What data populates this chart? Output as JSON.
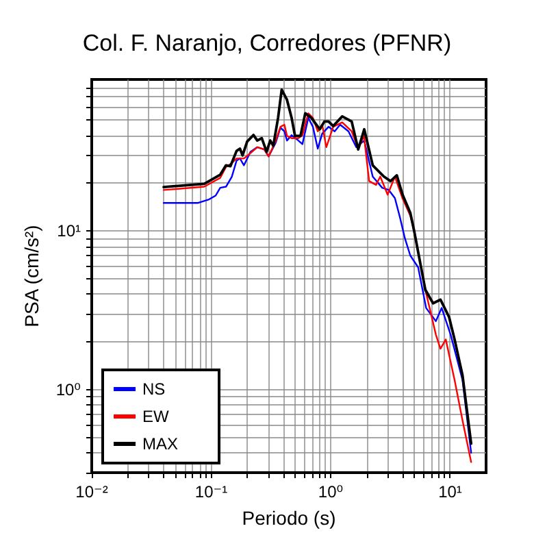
{
  "chart_data": {
    "type": "line",
    "title": "Col. F. Naranjo, Corredores (PFNR)",
    "xlabel": "Periodo (s)",
    "ylabel": "PSA (cm/s²)",
    "log": "xy",
    "grid": true,
    "legend": "bottom left",
    "marker": "none",
    "line_style": "solid",
    "xlim": [
      0.01,
      20
    ],
    "ylim": [
      0.3,
      90
    ],
    "xticks": [
      {
        "value": 0.01,
        "label": "10⁻²"
      },
      {
        "value": 0.02,
        "label": null
      },
      {
        "value": 0.03,
        "label": null
      },
      {
        "value": 0.04,
        "label": null
      },
      {
        "value": 0.05,
        "label": null
      },
      {
        "value": 0.06,
        "label": null
      },
      {
        "value": 0.07,
        "label": null
      },
      {
        "value": 0.08,
        "label": null
      },
      {
        "value": 0.09,
        "label": null
      },
      {
        "value": 0.1,
        "label": "10⁻¹"
      },
      {
        "value": 0.2,
        "label": null
      },
      {
        "value": 0.3,
        "label": null
      },
      {
        "value": 0.4,
        "label": null
      },
      {
        "value": 0.5,
        "label": null
      },
      {
        "value": 0.6,
        "label": null
      },
      {
        "value": 0.7,
        "label": null
      },
      {
        "value": 0.8,
        "label": null
      },
      {
        "value": 0.9,
        "label": null
      },
      {
        "value": 1,
        "label": "10⁰"
      },
      {
        "value": 2,
        "label": null
      },
      {
        "value": 3,
        "label": null
      },
      {
        "value": 4,
        "label": null
      },
      {
        "value": 5,
        "label": null
      },
      {
        "value": 6,
        "label": null
      },
      {
        "value": 7,
        "label": null
      },
      {
        "value": 8,
        "label": null
      },
      {
        "value": 9,
        "label": null
      },
      {
        "value": 10,
        "label": "10¹"
      }
    ],
    "yticks": [
      {
        "value": 0.3,
        "label": null
      },
      {
        "value": 0.4,
        "label": null
      },
      {
        "value": 0.5,
        "label": null
      },
      {
        "value": 0.6,
        "label": null
      },
      {
        "value": 0.7,
        "label": null
      },
      {
        "value": 0.8,
        "label": null
      },
      {
        "value": 0.9,
        "label": null
      },
      {
        "value": 1,
        "label": "10⁰"
      },
      {
        "value": 2,
        "label": null
      },
      {
        "value": 3,
        "label": null
      },
      {
        "value": 4,
        "label": null
      },
      {
        "value": 5,
        "label": null
      },
      {
        "value": 6,
        "label": null
      },
      {
        "value": 7,
        "label": null
      },
      {
        "value": 8,
        "label": null
      },
      {
        "value": 9,
        "label": null
      },
      {
        "value": 10,
        "label": "10¹"
      },
      {
        "value": 20,
        "label": null
      },
      {
        "value": 30,
        "label": null
      },
      {
        "value": 40,
        "label": null
      },
      {
        "value": 50,
        "label": null
      },
      {
        "value": 60,
        "label": null
      },
      {
        "value": 70,
        "label": null
      },
      {
        "value": 80,
        "label": null
      }
    ],
    "series": [
      {
        "name": "NS",
        "color": "#0000ff",
        "x": [
          0.04,
          0.077,
          0.096,
          0.109,
          0.119,
          0.133,
          0.149,
          0.163,
          0.174,
          0.188,
          0.213,
          0.243,
          0.278,
          0.303,
          0.347,
          0.38,
          0.41,
          0.431,
          0.471,
          0.536,
          0.58,
          0.65,
          0.71,
          0.78,
          0.85,
          0.96,
          1.08,
          1.2,
          1.41,
          1.64,
          1.91,
          2.25,
          2.7,
          3.07,
          3.45,
          3.8,
          4.18,
          4.64,
          5.4,
          6.3,
          7.6,
          8.5,
          10.1,
          12.7,
          15
        ],
        "values": [
          15,
          15,
          15.8,
          16.7,
          18.7,
          19,
          22,
          27.7,
          28.6,
          25.9,
          31.5,
          33.7,
          32.6,
          29.5,
          36,
          44.7,
          42.4,
          37.1,
          40.1,
          37.1,
          35.2,
          51.6,
          45.3,
          33,
          41,
          45.3,
          42.4,
          46.7,
          42.4,
          33.7,
          37.1,
          22,
          18.7,
          18.1,
          16.1,
          12.2,
          9,
          7,
          5.9,
          3.27,
          2.7,
          3.27,
          2.22,
          1.15,
          0.4
        ]
      },
      {
        "name": "EW",
        "color": "#ff0000",
        "x": [
          0.04,
          0.0875,
          0.119,
          0.133,
          0.149,
          0.163,
          0.174,
          0.188,
          0.213,
          0.243,
          0.278,
          0.303,
          0.347,
          0.38,
          0.41,
          0.431,
          0.471,
          0.536,
          0.58,
          0.65,
          0.71,
          0.78,
          0.85,
          0.92,
          1.05,
          1.25,
          1.5,
          1.7,
          1.9,
          2.1,
          2.4,
          2.6,
          3,
          3.45,
          4,
          4.64,
          5,
          6.2,
          7.6,
          8.3,
          9.2,
          10.9,
          12.7,
          15
        ],
        "values": [
          18.1,
          19,
          21.6,
          25.3,
          26.8,
          28.6,
          28.6,
          28.6,
          30.9,
          33.7,
          32.6,
          29.5,
          37.1,
          45.3,
          46.7,
          39.7,
          38.4,
          38.4,
          40,
          55.1,
          51.6,
          42.4,
          46.7,
          33.7,
          45.3,
          48.3,
          42.4,
          33,
          39.7,
          20.6,
          19.5,
          22,
          16.9,
          22,
          16,
          12.5,
          10,
          4.26,
          2.22,
          1.81,
          2.07,
          1.15,
          0.64,
          0.35
        ]
      },
      {
        "name": "MAX",
        "color": "#000000",
        "x": [
          0.04,
          0.0875,
          0.119,
          0.133,
          0.145,
          0.163,
          0.174,
          0.183,
          0.2,
          0.226,
          0.243,
          0.265,
          0.291,
          0.312,
          0.331,
          0.363,
          0.389,
          0.431,
          0.471,
          0.503,
          0.559,
          0.613,
          0.688,
          0.81,
          0.886,
          0.96,
          1.05,
          1.25,
          1.5,
          1.7,
          1.91,
          2.25,
          2.79,
          3.17,
          3.58,
          4,
          4.64,
          5,
          6.2,
          7.2,
          8.3,
          9.8,
          10.9,
          12.7,
          15
        ],
        "values": [
          18.9,
          19.8,
          22.6,
          25.9,
          25.6,
          31.9,
          33,
          29.9,
          36.6,
          40.2,
          37.1,
          38.4,
          31.5,
          37.1,
          34.4,
          51.6,
          77.6,
          67,
          51.6,
          39.7,
          39.7,
          55.1,
          51.6,
          43.7,
          48.9,
          48.9,
          45.8,
          52.7,
          48.9,
          32.6,
          43.7,
          25.9,
          22,
          20.6,
          22.4,
          16.9,
          13,
          10,
          4.26,
          3.5,
          3.69,
          2.87,
          2.07,
          1.23,
          0.457
        ]
      }
    ]
  }
}
